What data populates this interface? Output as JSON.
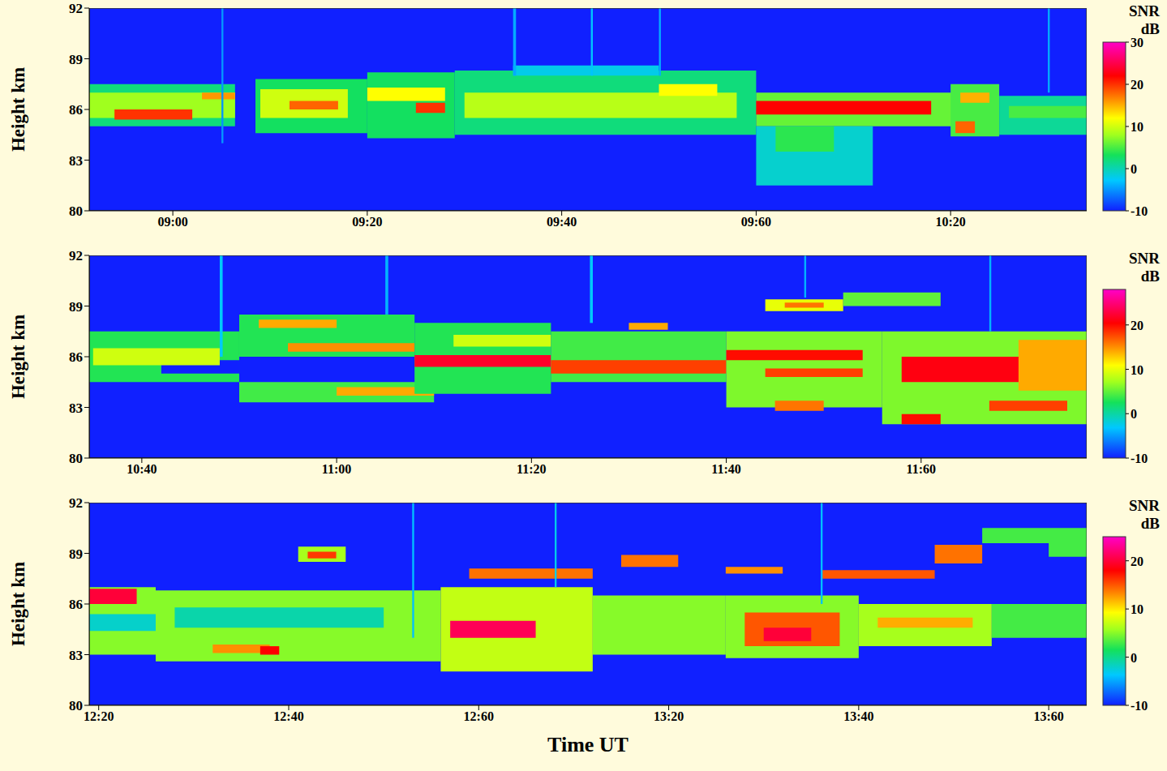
{
  "chart_data": [
    {
      "type": "heatmap",
      "ylabel": "Height km",
      "xlim": [
        531.4,
        634
      ],
      "xticks": [
        {
          "value": 540,
          "label": "09:00"
        },
        {
          "value": 560,
          "label": "09:20"
        },
        {
          "value": 580,
          "label": "09:40"
        },
        {
          "value": 600,
          "label": "09:60"
        },
        {
          "value": 620,
          "label": "10:20"
        }
      ],
      "ylim": [
        80,
        92
      ],
      "yticks": [
        80,
        83,
        86,
        89,
        92
      ],
      "colorbar_title": "SNR",
      "colorbar_unit": "dB",
      "colorbar_lim": [
        -10,
        30
      ],
      "colorbar_ticks": [
        -10,
        0,
        10,
        20,
        30
      ],
      "background": -10,
      "cells": [
        [
          531.4,
          546.4,
          85,
          87.5,
          2
        ],
        [
          531.4,
          546.4,
          85.5,
          87,
          8
        ],
        [
          534,
          542,
          85.4,
          86,
          20
        ],
        [
          543,
          546.4,
          86.6,
          87,
          16
        ],
        [
          548.5,
          560,
          84.6,
          87.8,
          3
        ],
        [
          560,
          569,
          84.3,
          88.2,
          3
        ],
        [
          549,
          558,
          85.5,
          87.2,
          10
        ],
        [
          552,
          557,
          86,
          86.5,
          18
        ],
        [
          565,
          568,
          85.8,
          86.4,
          20
        ],
        [
          560,
          568,
          86.5,
          87.3,
          12
        ],
        [
          569,
          600,
          84.5,
          88.3,
          2
        ],
        [
          575,
          590,
          88,
          88.6,
          -2
        ],
        [
          570,
          598,
          85.5,
          87,
          9
        ],
        [
          590,
          596,
          86.8,
          87.5,
          12
        ],
        [
          600,
          622,
          85,
          87,
          6
        ],
        [
          600,
          618,
          85.7,
          86.5,
          22
        ],
        [
          600,
          612,
          81.5,
          85,
          -1
        ],
        [
          602,
          608,
          83.5,
          85,
          4
        ],
        [
          620,
          625,
          84.4,
          87.5,
          5
        ],
        [
          621,
          624,
          86.4,
          87,
          15
        ],
        [
          620.5,
          622.5,
          84.6,
          85.3,
          18
        ],
        [
          625,
          634,
          84.5,
          86.8,
          1
        ],
        [
          626,
          634,
          85.5,
          86.2,
          5
        ],
        [
          545,
          545.2,
          84,
          92,
          -5
        ],
        [
          575,
          575.3,
          88,
          92,
          -4
        ],
        [
          583,
          583.2,
          88,
          92,
          -3
        ],
        [
          590,
          590.2,
          88,
          92,
          -4
        ],
        [
          630,
          630.2,
          87,
          92,
          -4
        ]
      ]
    },
    {
      "type": "heatmap",
      "ylabel": "Height km",
      "xlim": [
        634.6,
        737
      ],
      "xticks": [
        {
          "value": 640,
          "label": "10:40"
        },
        {
          "value": 660,
          "label": "11:00"
        },
        {
          "value": 680,
          "label": "11:20"
        },
        {
          "value": 700,
          "label": "11:40"
        },
        {
          "value": 720,
          "label": "11:60"
        }
      ],
      "ylim": [
        80,
        92
      ],
      "yticks": [
        80,
        83,
        86,
        89,
        92
      ],
      "colorbar_title": "SNR",
      "colorbar_unit": "dB",
      "colorbar_lim": [
        -10,
        28
      ],
      "colorbar_ticks": [
        -10,
        0,
        10,
        20
      ],
      "background": -10,
      "cells": [
        [
          634.6,
          650,
          84.5,
          87.5,
          3
        ],
        [
          642,
          650,
          85,
          85.8,
          -10
        ],
        [
          635,
          648,
          85.5,
          86.5,
          9
        ],
        [
          650,
          668,
          86,
          88.5,
          3
        ],
        [
          652,
          660,
          87.7,
          88.2,
          14
        ],
        [
          655,
          668,
          86.3,
          86.8,
          15
        ],
        [
          650,
          670,
          83.3,
          84.5,
          4
        ],
        [
          660,
          670,
          83.7,
          84.2,
          14
        ],
        [
          668,
          682,
          83.8,
          88,
          3
        ],
        [
          668,
          682,
          85.4,
          86.1,
          22
        ],
        [
          672,
          682,
          86.6,
          87.3,
          9
        ],
        [
          682,
          700,
          84.5,
          87.5,
          4
        ],
        [
          682,
          700,
          85,
          85.8,
          18
        ],
        [
          690,
          694,
          87.6,
          88,
          14
        ],
        [
          700,
          716,
          83,
          87.5,
          6
        ],
        [
          700,
          714,
          85.8,
          86.4,
          20
        ],
        [
          704,
          714,
          84.8,
          85.3,
          18
        ],
        [
          705,
          710,
          82.8,
          83.4,
          16
        ],
        [
          704,
          712,
          88.7,
          89.4,
          10
        ],
        [
          706,
          710,
          88.9,
          89.2,
          16
        ],
        [
          712,
          722,
          89,
          89.8,
          5
        ],
        [
          716,
          737,
          82,
          87.5,
          6
        ],
        [
          718,
          732,
          84.5,
          86,
          21
        ],
        [
          730,
          737,
          84,
          87,
          14
        ],
        [
          718,
          722,
          82,
          82.6,
          20
        ],
        [
          727,
          735,
          82.8,
          83.4,
          18
        ],
        [
          648,
          648.3,
          86,
          92,
          -3
        ],
        [
          665,
          665.3,
          88.5,
          92,
          -4
        ],
        [
          686,
          686.3,
          88,
          92,
          -3
        ],
        [
          708,
          708.2,
          89.5,
          92,
          -4
        ],
        [
          727,
          727.2,
          87.5,
          92,
          -4
        ]
      ]
    },
    {
      "type": "heatmap",
      "ylabel": "Height km",
      "xlabel": "Time UT",
      "xlim": [
        739,
        844
      ],
      "xticks": [
        {
          "value": 740,
          "label": "12:20"
        },
        {
          "value": 760,
          "label": "12:40"
        },
        {
          "value": 780,
          "label": "12:60"
        },
        {
          "value": 800,
          "label": "13:20"
        },
        {
          "value": 820,
          "label": "13:40"
        },
        {
          "value": 840,
          "label": "13:60"
        }
      ],
      "ylim": [
        80,
        92
      ],
      "yticks": [
        80,
        83,
        86,
        89,
        92
      ],
      "colorbar_title": "SNR",
      "colorbar_unit": "dB",
      "colorbar_lim": [
        -10,
        25
      ],
      "colorbar_ticks": [
        -10,
        0,
        10,
        20
      ],
      "background": -10,
      "cells": [
        [
          739,
          746,
          83,
          87,
          5
        ],
        [
          739,
          744,
          86,
          86.9,
          20
        ],
        [
          739,
          746,
          84.4,
          85.4,
          -2
        ],
        [
          746,
          776,
          82.6,
          86.8,
          5
        ],
        [
          748,
          770,
          84.6,
          85.8,
          -1
        ],
        [
          752,
          758,
          83.1,
          83.6,
          13
        ],
        [
          757,
          759,
          83,
          83.5,
          18
        ],
        [
          761,
          766,
          88.5,
          89.4,
          6
        ],
        [
          762,
          765,
          88.7,
          89.1,
          16
        ],
        [
          776,
          792,
          82,
          87,
          7
        ],
        [
          777,
          786,
          84,
          85,
          21
        ],
        [
          779,
          792,
          87.5,
          88.1,
          14
        ],
        [
          792,
          806,
          83,
          86.5,
          5
        ],
        [
          795,
          801,
          88.2,
          88.9,
          14
        ],
        [
          806,
          820,
          82.8,
          86.5,
          5
        ],
        [
          808,
          818,
          83.5,
          85.5,
          15
        ],
        [
          810,
          815,
          83.8,
          84.6,
          20
        ],
        [
          806,
          812,
          87.8,
          88.2,
          13
        ],
        [
          816,
          828,
          87.5,
          88,
          15
        ],
        [
          820,
          834,
          83.5,
          86,
          6
        ],
        [
          822,
          832,
          84.6,
          85.2,
          12
        ],
        [
          834,
          844,
          84,
          86,
          3
        ],
        [
          828,
          833,
          88.4,
          89.5,
          14
        ],
        [
          833,
          844,
          89.6,
          90.5,
          3
        ],
        [
          840,
          844,
          88.8,
          89.6,
          3
        ],
        [
          773,
          773.2,
          84,
          92,
          -4
        ],
        [
          788,
          788.2,
          87,
          92,
          -3
        ],
        [
          816,
          816.2,
          86,
          92,
          -4
        ]
      ]
    }
  ]
}
